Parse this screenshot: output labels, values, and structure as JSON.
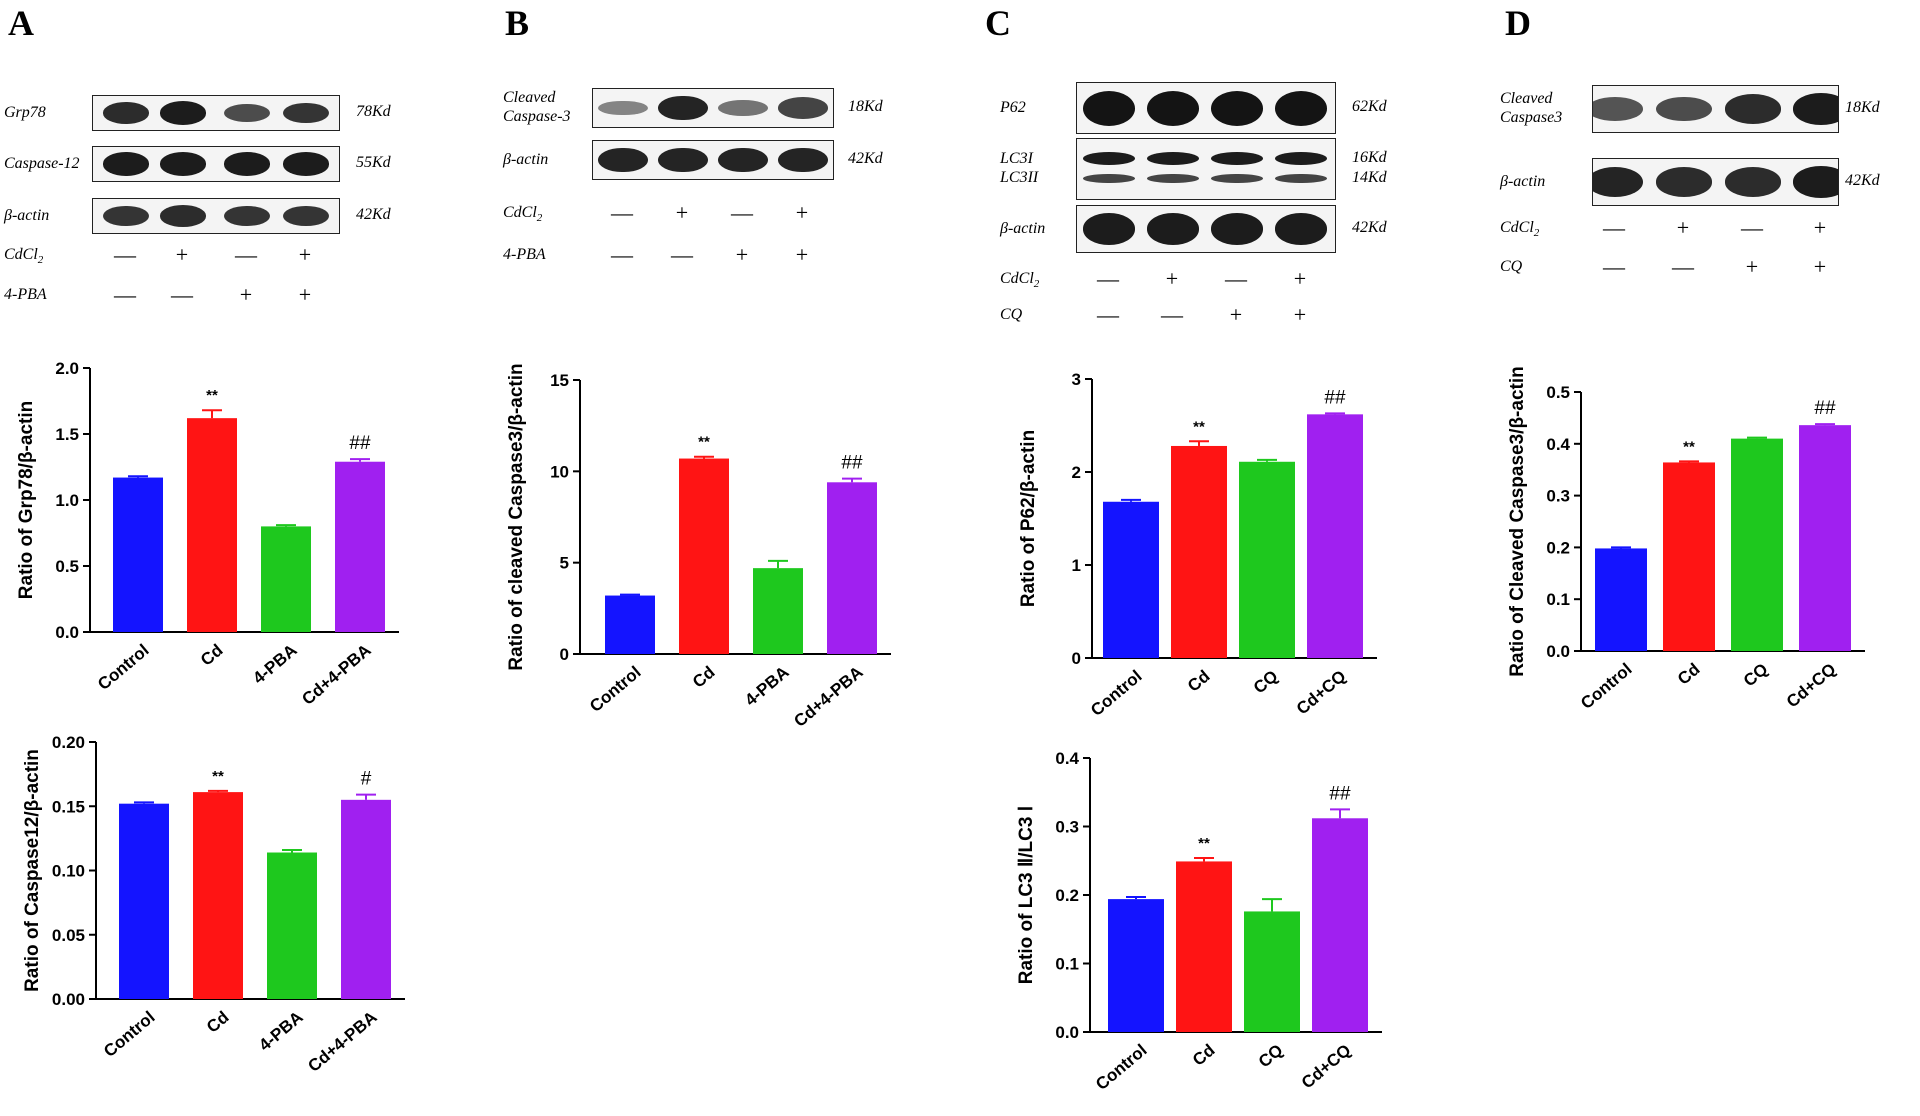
{
  "panels": {
    "A": {
      "letter": "A",
      "blots": [
        {
          "label": "Grp78",
          "kd": "78Kd",
          "intensity": [
            0.85,
            0.95,
            0.65,
            0.8
          ]
        },
        {
          "label": "Caspase-12",
          "kd": "55Kd",
          "intensity": [
            0.95,
            0.95,
            0.95,
            0.95
          ]
        },
        {
          "label": "β-actin",
          "kd": "42Kd",
          "intensity": [
            0.8,
            0.85,
            0.8,
            0.8
          ]
        }
      ],
      "treatments": [
        {
          "label": "CdCl",
          "sub": "2",
          "signs": [
            "—",
            "+",
            "—",
            "+"
          ]
        },
        {
          "label": "4-PBA",
          "sub": "",
          "signs": [
            "—",
            "—",
            "+",
            "+"
          ]
        }
      ]
    },
    "B": {
      "letter": "B",
      "blots": [
        {
          "label": "Cleaved\nCaspase-3",
          "kd": "18Kd",
          "intensity": [
            0.3,
            0.9,
            0.4,
            0.7
          ]
        },
        {
          "label": "β-actin",
          "kd": "42Kd",
          "intensity": [
            0.9,
            0.9,
            0.9,
            0.9
          ]
        }
      ],
      "treatments": [
        {
          "label": "CdCl",
          "sub": "2",
          "signs": [
            "—",
            "+",
            "—",
            "+"
          ]
        },
        {
          "label": "4-PBA",
          "sub": "",
          "signs": [
            "—",
            "—",
            "+",
            "+"
          ]
        }
      ]
    },
    "C": {
      "letter": "C",
      "blots": [
        {
          "label": "P62",
          "kd": "62Kd",
          "intensity": [
            1,
            1,
            1,
            1
          ]
        },
        {
          "label": "LC3I\nLC3II",
          "kd": "16Kd\n14Kd",
          "intensity": [
            0.95,
            0.95,
            0.95,
            0.95
          ]
        },
        {
          "label": "β-actin",
          "kd": "42Kd",
          "intensity": [
            0.95,
            0.95,
            0.95,
            0.95
          ]
        }
      ],
      "treatments": [
        {
          "label": "CdCl",
          "sub": "2",
          "signs": [
            "—",
            "+",
            "—",
            "+"
          ]
        },
        {
          "label": "CQ",
          "sub": "",
          "signs": [
            "—",
            "—",
            "+",
            "+"
          ]
        }
      ]
    },
    "D": {
      "letter": "D",
      "blots": [
        {
          "label": "Cleaved\nCaspase3",
          "kd": "18Kd",
          "intensity": [
            0.6,
            0.65,
            0.85,
            0.95
          ]
        },
        {
          "label": "β-actin",
          "kd": "42Kd",
          "intensity": [
            0.9,
            0.85,
            0.85,
            0.95
          ]
        }
      ],
      "treatments": [
        {
          "label": "CdCl",
          "sub": "2",
          "signs": [
            "—",
            "+",
            "—",
            "+"
          ]
        },
        {
          "label": "CQ",
          "sub": "",
          "signs": [
            "—",
            "—",
            "+",
            "+"
          ]
        }
      ]
    }
  },
  "colors": {
    "control": "#1414ff",
    "cd": "#ff1414",
    "treat": "#1ec81e",
    "combo": "#a020f0"
  },
  "chart_data": [
    {
      "id": "A1",
      "type": "bar",
      "categories": [
        "Control",
        "Cd",
        "4-PBA",
        "Cd+4-PBA"
      ],
      "values": [
        1.17,
        1.62,
        0.8,
        1.29
      ],
      "errors": [
        0.01,
        0.06,
        0.01,
        0.02
      ],
      "marks": [
        "",
        "**",
        "",
        "##"
      ],
      "ylabel": "Ratio of Grp78/β-actin",
      "ylim": [
        0,
        2.0
      ],
      "ticks": [
        "0.0",
        "0.5",
        "1.0",
        "1.5",
        "2.0"
      ]
    },
    {
      "id": "A2",
      "type": "bar",
      "categories": [
        "Control",
        "Cd",
        "4-PBA",
        "Cd+4-PBA"
      ],
      "values": [
        0.152,
        0.161,
        0.114,
        0.155
      ],
      "errors": [
        0.001,
        0.001,
        0.002,
        0.004
      ],
      "marks": [
        "",
        "**",
        "",
        "#"
      ],
      "ylabel": "Ratio of Caspase12/β-actin",
      "ylim": [
        0,
        0.2
      ],
      "ticks": [
        "0.00",
        "0.05",
        "0.10",
        "0.15",
        "0.20"
      ]
    },
    {
      "id": "B1",
      "type": "bar",
      "categories": [
        "Control",
        "Cd",
        "4-PBA",
        "Cd+4-PBA"
      ],
      "values": [
        3.2,
        10.7,
        4.7,
        9.4
      ],
      "errors": [
        0.05,
        0.1,
        0.4,
        0.2
      ],
      "marks": [
        "",
        "**",
        "",
        "##"
      ],
      "ylabel": "Ratio of cleaved Caspase3/β-actin",
      "ylim": [
        0,
        15
      ],
      "ticks": [
        "0",
        "5",
        "10",
        "15"
      ]
    },
    {
      "id": "C1",
      "type": "bar",
      "categories": [
        "Control",
        "Cd",
        "CQ",
        "Cd+CQ"
      ],
      "values": [
        1.68,
        2.28,
        2.11,
        2.62
      ],
      "errors": [
        0.02,
        0.05,
        0.02,
        0.01
      ],
      "marks": [
        "",
        "**",
        "",
        "##"
      ],
      "ylabel": "Ratio of P62/β-actin",
      "ylim": [
        0,
        3
      ],
      "ticks": [
        "0",
        "1",
        "2",
        "3"
      ]
    },
    {
      "id": "C2",
      "type": "bar",
      "categories": [
        "Control",
        "Cd",
        "CQ",
        "Cd+CQ"
      ],
      "values": [
        0.194,
        0.249,
        0.176,
        0.312
      ],
      "errors": [
        0.003,
        0.005,
        0.018,
        0.013
      ],
      "marks": [
        "",
        "**",
        "",
        "##"
      ],
      "ylabel": "Ratio of LC3 Ⅱ/LC3 Ⅰ",
      "ylim": [
        0,
        0.4
      ],
      "ticks": [
        "0.0",
        "0.1",
        "0.2",
        "0.3",
        "0.4"
      ]
    },
    {
      "id": "D1",
      "type": "bar",
      "categories": [
        "Control",
        "Cd",
        "CQ",
        "Cd+CQ"
      ],
      "values": [
        0.198,
        0.364,
        0.41,
        0.436
      ],
      "errors": [
        0.002,
        0.002,
        0.002,
        0.002
      ],
      "marks": [
        "",
        "**",
        "",
        "##"
      ],
      "ylabel": "Ratio of Cleaved Caspase3/β-actin",
      "ylim": [
        0,
        0.5
      ],
      "ticks": [
        "0.0",
        "0.1",
        "0.2",
        "0.3",
        "0.4",
        "0.5"
      ]
    }
  ]
}
